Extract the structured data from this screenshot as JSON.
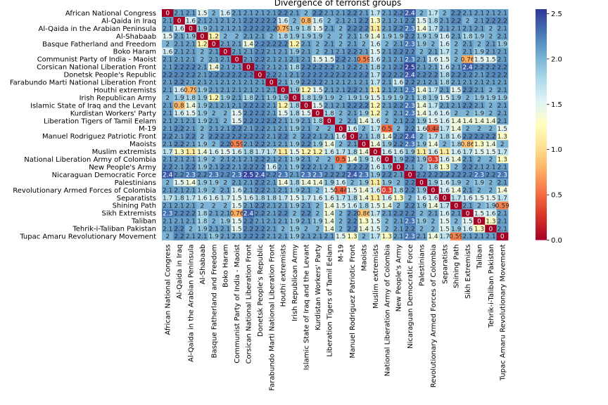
{
  "chart_data": {
    "type": "heatmap",
    "title": "Divergence of terrorist groups",
    "labels": [
      "African National Congress",
      "Al-Qaida in Iraq",
      "Al-Qaida in the Arabian Peninsula",
      "Al-Shabaab",
      "Basque Fatherland and Freedom",
      "Boko Haram",
      "Communist Party of India - Maoist",
      "Corsican National Liberation Front",
      "Donetsk People's Republic",
      "Farabundo Marti National Liberation Front",
      "Houthi extremists",
      "Irish Republican Army",
      "Islamic State of Iraq and the Levant",
      "Kurdistan Workers' Party",
      "Liberation Tigers of Tamil Eelam",
      "M-19",
      "Manuel Rodriguez Patriotic Front",
      "Maoists",
      "Muslim extremists",
      "National Liberation Army of Colombia",
      "New People's Army",
      "Nicaraguan Democratic Force",
      "Palestinians",
      "Revolutionary Armed Forces of Colombia",
      "Separatists",
      "Shining Path",
      "Sikh Extremists",
      "Taliban",
      "Tehrik-i-Taliban Pakistan",
      "Tupac Amaru Revolutionary Movement"
    ],
    "values": [
      [
        0,
        2.1,
        2.1,
        1.5,
        2,
        1.6,
        2.1,
        2.1,
        2.1,
        2.1,
        2.2,
        2.1,
        2,
        2.2,
        2.1,
        2.1,
        2.2,
        2.1,
        1.7,
        2.1,
        2.2,
        2.4,
        2,
        1.7,
        2,
        2.2,
        2.1,
        2.1,
        2.1,
        2.1
      ],
      [
        2.1,
        0,
        1.6,
        2.1,
        2.1,
        2.1,
        2.1,
        2.2,
        2.2,
        2.2,
        1.6,
        2,
        0.8,
        1.6,
        2,
        2.1,
        2.1,
        2.2,
        1.3,
        2.1,
        2.1,
        2.2,
        1.5,
        1.8,
        2.1,
        2.2,
        2,
        2.1,
        2.2,
        2.2
      ],
      [
        2.1,
        1.6,
        0,
        1.9,
        2.1,
        2.1,
        2.1,
        2.2,
        2.2,
        2.2,
        0.79,
        1.9,
        1.8,
        1.5,
        2.1,
        2,
        2.2,
        2.2,
        1.1,
        2.1,
        2.2,
        2.3,
        1.4,
        1.7,
        2.1,
        2.1,
        2.1,
        2.1,
        2,
        2.1
      ],
      [
        1.5,
        2.1,
        1.9,
        0,
        1.2,
        2,
        2,
        2.1,
        2.1,
        2,
        1.8,
        1.9,
        1.9,
        1.9,
        2,
        2,
        2.1,
        1.9,
        1.4,
        1.9,
        1.9,
        2.2,
        1.9,
        1.9,
        1.6,
        2.1,
        1.8,
        1.9,
        2,
        2.1
      ],
      [
        2,
        2.1,
        2.1,
        1.2,
        0,
        2.1,
        2.1,
        1.4,
        2.2,
        2.2,
        2.2,
        1.2,
        2.1,
        2,
        2.1,
        2,
        2.1,
        2,
        1.6,
        2,
        2.1,
        2.3,
        1.9,
        2,
        1.6,
        2,
        2.1,
        2,
        2.1,
        1.9
      ],
      [
        1.6,
        2.1,
        2.1,
        2,
        2.1,
        0,
        2.1,
        2.1,
        2.2,
        2.1,
        2.1,
        1.9,
        2.1,
        2,
        2.1,
        2.1,
        2.2,
        2.1,
        1.5,
        2.1,
        2.2,
        2.2,
        2,
        2.1,
        1.7,
        2,
        2.1,
        1.9,
        2.1,
        2.1
      ],
      [
        2.1,
        2.1,
        2.1,
        2,
        2.1,
        2.1,
        0,
        2.1,
        2.2,
        2.1,
        2.1,
        2.1,
        2.1,
        1.5,
        1.5,
        2.2,
        2.1,
        0.59,
        1.6,
        2.1,
        2.1,
        2.3,
        2.1,
        1.6,
        1.5,
        2,
        0.76,
        1.5,
        1.5,
        2.1
      ],
      [
        2.1,
        2.2,
        2.2,
        2.1,
        1.4,
        2.1,
        2.1,
        0,
        2.2,
        2.1,
        2.1,
        1.8,
        2.2,
        2.2,
        2.2,
        2.1,
        2.2,
        2.1,
        1.8,
        2.1,
        2.2,
        2.5,
        2.1,
        2.1,
        1.6,
        2.1,
        2.4,
        2.2,
        2.2,
        2.2
      ],
      [
        2.2,
        2.2,
        2.2,
        2.1,
        2.2,
        2.2,
        2.2,
        2.2,
        0,
        2.2,
        2.1,
        2.1,
        2.2,
        2.2,
        2.2,
        2.2,
        2.2,
        2.2,
        1.7,
        2.2,
        2.2,
        2.4,
        2.2,
        2.2,
        1.8,
        2.2,
        2.2,
        2.1,
        2.2,
        2.2
      ],
      [
        2.1,
        2.2,
        2.1,
        2.1,
        2.1,
        2.1,
        2.1,
        2.1,
        2.1,
        0,
        2.1,
        1.9,
        2.2,
        2.2,
        2.1,
        2.1,
        2.1,
        2.1,
        1.7,
        2.1,
        1.6,
        2.2,
        2.1,
        2.1,
        1.8,
        2.1,
        2.1,
        2.1,
        2.1,
        2.1
      ],
      [
        2.1,
        1.6,
        0.79,
        1.9,
        2.1,
        2.1,
        2.1,
        2.1,
        2.1,
        2.1,
        0,
        1.9,
        1.2,
        1.5,
        2.1,
        2.1,
        2.2,
        2.1,
        1.1,
        2.1,
        2.1,
        2.3,
        1.4,
        1.7,
        2.1,
        1.5,
        2.2,
        2.1,
        2,
        2.1
      ],
      [
        2,
        1.9,
        1.8,
        1.9,
        1.2,
        1.9,
        2.1,
        1.8,
        2.1,
        1.9,
        1.9,
        0,
        1.8,
        1.9,
        1.9,
        2,
        1.9,
        1.9,
        1.5,
        1.9,
        1.9,
        2.1,
        1.8,
        1.9,
        1.5,
        1.9,
        2,
        1.9,
        1.9,
        1.9
      ],
      [
        2.1,
        0.8,
        1.4,
        1.9,
        2.1,
        2.1,
        2.1,
        2.2,
        2.2,
        2.1,
        1.2,
        1.8,
        0,
        1.5,
        2.1,
        2.1,
        2.2,
        2.2,
        1.2,
        2.1,
        2.2,
        2.3,
        1.4,
        1.7,
        2.1,
        2.1,
        2.2,
        2.1,
        2,
        2.1
      ],
      [
        2.1,
        1.6,
        1.5,
        1.9,
        2,
        2,
        1.5,
        2.2,
        2.2,
        2.1,
        1.5,
        1.8,
        1.5,
        0,
        1.8,
        2,
        2.1,
        1.9,
        1.2,
        2,
        2.1,
        2.3,
        1.4,
        1.6,
        1.6,
        2,
        2,
        1.9,
        2,
        2.1
      ],
      [
        2.1,
        2.1,
        2.1,
        1.9,
        2.1,
        2,
        1.5,
        2.2,
        2.2,
        2.2,
        2.1,
        1.9,
        2.1,
        1.8,
        0,
        2,
        2.1,
        1.4,
        1.6,
        2,
        2.1,
        2.2,
        1.9,
        1.5,
        1.6,
        1.4,
        1.4,
        1.4,
        1.4,
        2.1
      ],
      [
        2.1,
        2.2,
        2.1,
        2,
        2.1,
        2.1,
        2.2,
        2.1,
        2.2,
        2.1,
        2.1,
        1.9,
        2.1,
        2,
        2,
        0,
        1.6,
        2,
        1.7,
        0.5,
        2,
        2.2,
        1.6,
        0.44,
        1.7,
        1.4,
        2,
        2,
        2,
        1.5
      ],
      [
        2.2,
        2.1,
        2.2,
        2,
        2.2,
        2.2,
        2.2,
        2.2,
        2.2,
        2.1,
        2.2,
        2,
        2.2,
        2.1,
        2.1,
        1.6,
        0,
        2.1,
        1.8,
        1.4,
        2.2,
        2.4,
        2,
        1.7,
        1.8,
        1.6,
        2.2,
        2.2,
        2.2,
        1.3
      ],
      [
        2.1,
        2.2,
        2.1,
        1.9,
        2,
        2.2,
        0.59,
        2.1,
        2.2,
        2.1,
        2.1,
        1.9,
        2.2,
        1.9,
        1.4,
        2,
        2.1,
        0,
        1.4,
        1.9,
        2.2,
        2.3,
        1.9,
        1.4,
        2,
        1.8,
        0.86,
        1.3,
        1.4,
        2
      ],
      [
        1.7,
        1.3,
        1.1,
        1.4,
        1.6,
        1.5,
        1.6,
        1.8,
        1.7,
        1.7,
        1.1,
        1.5,
        1.2,
        1.2,
        1.6,
        1.7,
        1.8,
        1.4,
        0,
        1.6,
        1.6,
        1.9,
        1.1,
        1.6,
        1.1,
        1.6,
        1.7,
        1.5,
        1.5,
        1.7
      ],
      [
        2.1,
        2.1,
        2.1,
        1.9,
        2,
        2.1,
        2.1,
        2.1,
        2.2,
        2.1,
        2.1,
        1.9,
        2.1,
        2,
        2,
        0.5,
        1.4,
        1.9,
        1.6,
        0,
        1.9,
        2.2,
        1.9,
        0.3,
        1.6,
        1.4,
        2.1,
        2,
        2,
        1.3
      ],
      [
        2.2,
        2.1,
        2.2,
        1.9,
        2.1,
        2.2,
        2.1,
        2.2,
        2.2,
        1.6,
        2.1,
        1.9,
        2.2,
        2.1,
        2.1,
        2,
        2.2,
        2.2,
        1.6,
        1.9,
        0,
        2.1,
        2,
        1.8,
        1.3,
        2,
        2.2,
        2.1,
        2.1,
        2.1
      ],
      [
        2.4,
        2.2,
        2.3,
        2.2,
        2.3,
        2.2,
        2.3,
        2.5,
        2.4,
        2.2,
        2.3,
        2.1,
        2.3,
        2.3,
        2.2,
        2.2,
        2.4,
        2.3,
        1.9,
        2.2,
        2.1,
        0,
        2.2,
        2.2,
        2.2,
        2.2,
        2.2,
        2.3,
        2.2,
        2.3
      ],
      [
        2,
        1.5,
        1.4,
        1.9,
        1.9,
        2,
        2.1,
        2.1,
        2.2,
        2.1,
        1.4,
        1.8,
        1.4,
        1.4,
        1.9,
        1.6,
        2,
        1.9,
        1.1,
        1.9,
        2,
        2.2,
        0,
        1.9,
        1.6,
        1.9,
        2,
        1.9,
        2,
        2.1
      ],
      [
        2.1,
        2.1,
        2.1,
        1.9,
        2,
        2.1,
        1.6,
        2.1,
        2.2,
        2.1,
        2.1,
        1.9,
        2.1,
        2,
        1.5,
        0.44,
        1.5,
        1.4,
        1.6,
        0.3,
        1.8,
        2.2,
        1.9,
        0,
        1.6,
        1.4,
        2.1,
        2,
        2,
        1.4
      ],
      [
        1.7,
        1.8,
        1.7,
        1.6,
        1.6,
        1.7,
        1.5,
        1.6,
        1.8,
        1.8,
        1.7,
        1.5,
        1.7,
        1.6,
        1.6,
        1.7,
        1.8,
        1.4,
        1.1,
        1.6,
        1.3,
        2,
        1.6,
        1.6,
        0,
        1.7,
        1.6,
        1.5,
        1.5,
        1.7
      ],
      [
        2.1,
        2.1,
        2.1,
        2,
        2,
        2,
        1.5,
        2.1,
        2.2,
        2.1,
        2.1,
        1.9,
        2.1,
        2,
        1.4,
        1.5,
        1.6,
        1.8,
        1.5,
        1.4,
        2,
        2.2,
        1.9,
        1.4,
        1.7,
        0,
        2.1,
        2,
        1.9,
        0.59
      ],
      [
        2.3,
        2.2,
        2.2,
        1.8,
        2.1,
        2.1,
        0.76,
        2.4,
        2.2,
        2.1,
        2.2,
        2,
        2.2,
        2,
        1.4,
        2,
        2.2,
        0.86,
        1.7,
        2.1,
        2.2,
        2.2,
        2,
        2.1,
        1.6,
        2.1,
        0,
        1.5,
        1.6,
        2.1
      ],
      [
        2.1,
        2.1,
        2.1,
        1.8,
        2,
        1.9,
        1.5,
        2.2,
        2.1,
        2.1,
        2.1,
        1.9,
        2.1,
        1.9,
        1.4,
        2,
        2.2,
        1.3,
        1.5,
        2,
        2.1,
        2.3,
        1.9,
        2,
        1.5,
        2,
        1.5,
        0,
        1.3,
        2.1
      ],
      [
        2.1,
        2.2,
        2,
        1.9,
        2.1,
        2.1,
        1.5,
        2.2,
        2.2,
        2.1,
        2,
        1.9,
        2,
        2,
        1.4,
        2,
        2.2,
        1.4,
        1.5,
        2,
        2.1,
        2.2,
        2,
        2,
        1.5,
        1.9,
        1.6,
        1.3,
        0,
        2.1
      ],
      [
        2,
        2.2,
        2.1,
        2.1,
        1.9,
        2.1,
        2.1,
        2.2,
        2.2,
        2.1,
        2.1,
        1.9,
        2.1,
        2.1,
        2.1,
        1.5,
        1.3,
        2,
        1.7,
        1.3,
        2.1,
        2.3,
        2.1,
        1.4,
        1.7,
        0.59,
        2.1,
        2.1,
        2.1,
        0
      ]
    ],
    "vmin": 0,
    "vmax": 2.55,
    "colormap": "RdYlBu",
    "colorbar_ticks": [
      0.0,
      0.5,
      1.0,
      1.5,
      2.0,
      2.5
    ],
    "colorbar_tick_labels": [
      "0.0",
      "0.5",
      "1.0",
      "1.5",
      "2.0",
      "2.5"
    ],
    "annotated": true,
    "grid": false,
    "colors": {
      "low": "#a50026",
      "mid": "#ffffbf",
      "high": "#313695"
    }
  }
}
